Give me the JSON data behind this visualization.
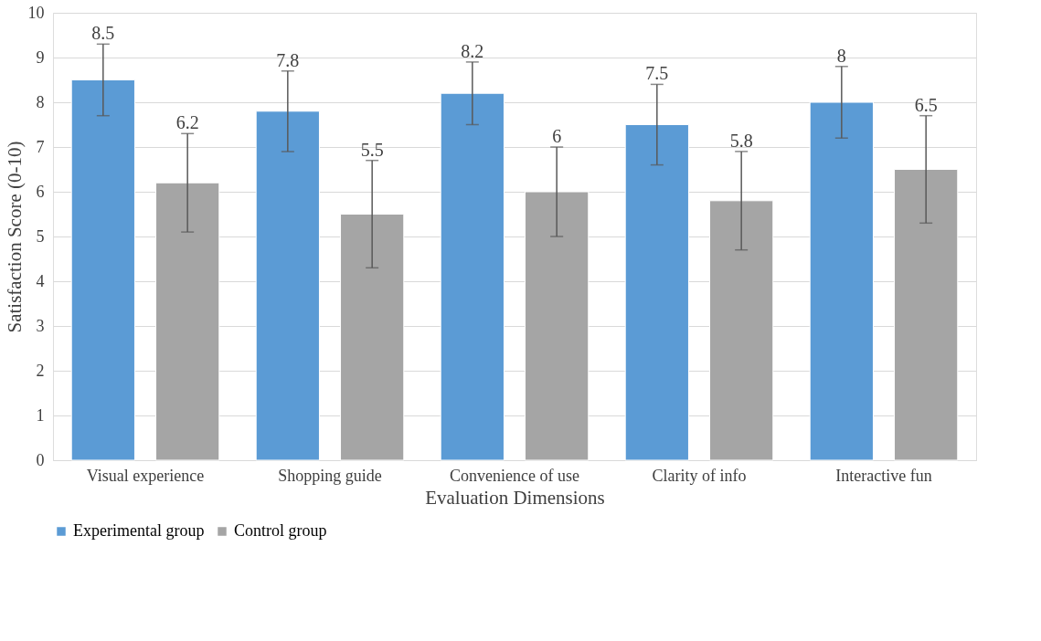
{
  "chart_data": {
    "type": "bar",
    "xlabel": "Evaluation Dimensions",
    "ylabel": "Satisfaction Score (0-10)",
    "categories": [
      "Visual experience",
      "Shopping guide",
      "Convenience of use",
      "Clarity of info",
      "Interactive fun"
    ],
    "series": [
      {
        "name": "Experimental group",
        "color": "#5b9bd5",
        "values": [
          8.5,
          7.8,
          8.2,
          7.5,
          8
        ],
        "errors": [
          0.8,
          0.9,
          0.7,
          0.9,
          0.8
        ]
      },
      {
        "name": "Control group",
        "color": "#a5a5a5",
        "values": [
          6.2,
          5.5,
          6,
          5.8,
          6.5
        ],
        "errors": [
          1.1,
          1.2,
          1,
          1.1,
          1.2
        ]
      }
    ],
    "ylim": [
      0,
      10
    ],
    "yticks": [
      0,
      1,
      2,
      3,
      4,
      5,
      6,
      7,
      8,
      9,
      10
    ],
    "grid": "y",
    "legend": "bottom",
    "data_labels": true
  }
}
